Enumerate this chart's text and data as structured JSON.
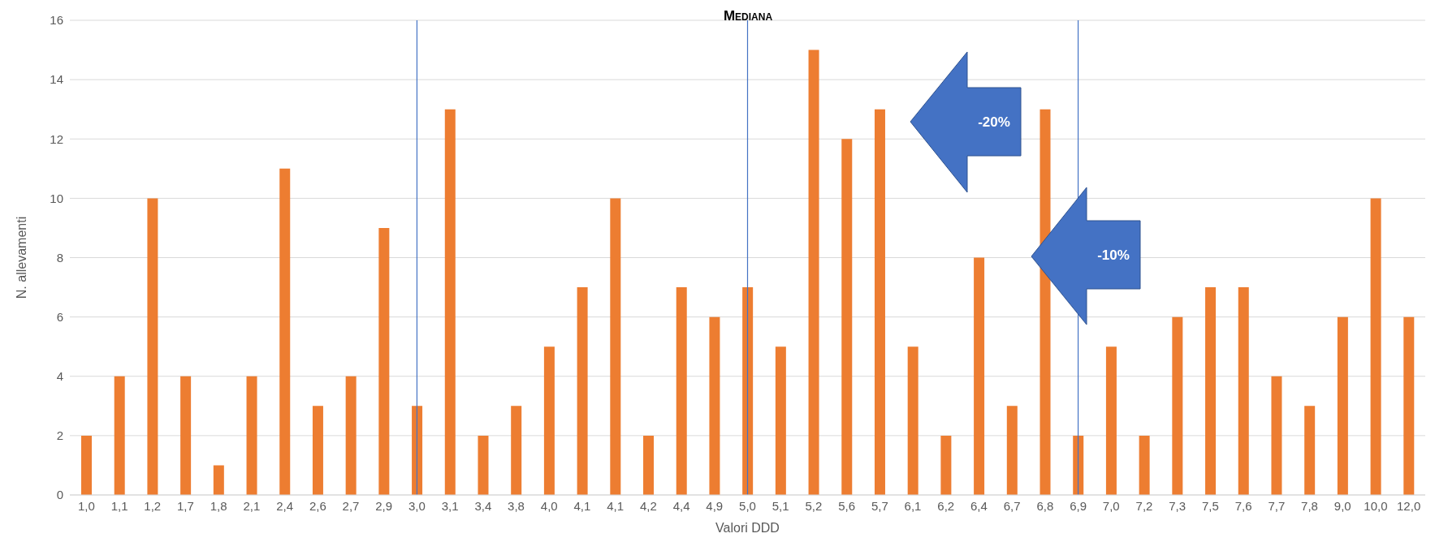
{
  "chart_data": {
    "type": "bar",
    "title": "Mediana",
    "xlabel": "Valori DDD",
    "ylabel": "N. allevamenti",
    "categories": [
      "1,0",
      "1,1",
      "1,2",
      "1,7",
      "1,8",
      "2,1",
      "2,4",
      "2,6",
      "2,7",
      "2,9",
      "3,0",
      "3,1",
      "3,4",
      "3,8",
      "4,0",
      "4,1",
      "4,1",
      "4,2",
      "4,4",
      "4,9",
      "5,0",
      "5,1",
      "5,2",
      "5,6",
      "5,7",
      "6,1",
      "6,2",
      "6,4",
      "6,7",
      "6,8",
      "6,9",
      "7,0",
      "7,2",
      "7,3",
      "7,5",
      "7,6",
      "7,7",
      "7,8",
      "9,0",
      "10,0",
      "12,0"
    ],
    "values": [
      2,
      4,
      10,
      4,
      1,
      4,
      11,
      3,
      4,
      9,
      3,
      13,
      2,
      3,
      5,
      7,
      10,
      2,
      7,
      6,
      7,
      5,
      15,
      12,
      13,
      5,
      2,
      8,
      3,
      13,
      2,
      5,
      2,
      6,
      7,
      7,
      4,
      3,
      6,
      10,
      6
    ],
    "color": "#ed7d31",
    "ylim": [
      0,
      16
    ],
    "yticks": [
      0,
      2,
      4,
      6,
      8,
      10,
      12,
      14,
      16
    ],
    "grid": "y",
    "ref_lines": [
      {
        "axis": "x",
        "value": "3,0",
        "color": "#4472c4"
      },
      {
        "axis": "x",
        "value": "5,0",
        "color": "#4472c4"
      },
      {
        "axis": "x",
        "value": "6,9",
        "color": "#4472c4"
      }
    ],
    "annotations": [
      "-20%",
      "-10%"
    ]
  }
}
